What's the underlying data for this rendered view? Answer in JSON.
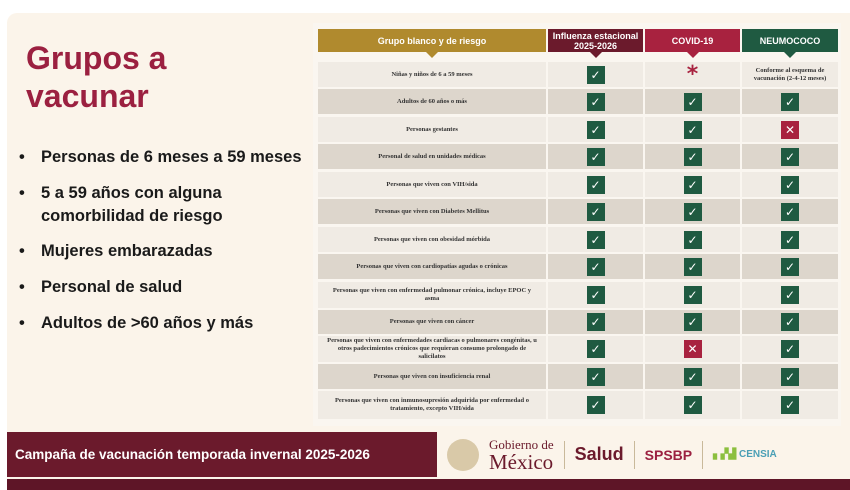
{
  "title": "Grupos a vacunar",
  "title_lines": [
    "Grupos a",
    "vacunar"
  ],
  "bullets": [
    "Personas de 6 meses a 59 meses",
    "5 a 59 años con alguna",
    "comorbilidad de riesgo",
    "Mujeres embarazadas",
    "Personal de salud",
    "Adultos de >60 años y más"
  ],
  "table": {
    "headers": [
      {
        "label": "Grupo blanco y de riesgo",
        "color": "#b08a2e"
      },
      {
        "label": "Influenza estacional 2025-2026",
        "color": "#6b1a2c"
      },
      {
        "label": "COVID-19",
        "color": "#a8223f"
      },
      {
        "label": "NEUMOCOCO",
        "color": "#1f5a41"
      }
    ],
    "rows": [
      {
        "group": "Niñas y niños de 6 a 59 meses",
        "influenza": "check",
        "covid": "asterisk",
        "neumococo": "Conforme al esquema de vacunación (2-4-12 meses)"
      },
      {
        "group": "Adultos de 60 años o más",
        "influenza": "check",
        "covid": "check",
        "neumococo": "check"
      },
      {
        "group": "Personas gestantes",
        "influenza": "check",
        "covid": "check",
        "neumococo": "x"
      },
      {
        "group": "Personal de salud en unidades médicas",
        "influenza": "check",
        "covid": "check",
        "neumococo": "check"
      },
      {
        "group": "Personas que viven con VIH/sida",
        "influenza": "check",
        "covid": "check",
        "neumococo": "check"
      },
      {
        "group": "Personas que viven con Diabetes Mellitus",
        "influenza": "check",
        "covid": "check",
        "neumococo": "check"
      },
      {
        "group": "Personas que viven con obesidad mórbida",
        "influenza": "check",
        "covid": "check",
        "neumococo": "check"
      },
      {
        "group": "Personas que viven con cardiopatías agudas o crónicas",
        "influenza": "check",
        "covid": "check",
        "neumococo": "check"
      },
      {
        "group": "Personas que viven con enfermedad pulmonar crónica, incluye EPOC y asma",
        "influenza": "check",
        "covid": "check",
        "neumococo": "check"
      },
      {
        "group": "Personas que viven con cáncer",
        "influenza": "check",
        "covid": "check",
        "neumococo": "check"
      },
      {
        "group": "Personas que viven con enfermedades cardiacas o pulmonares congénitas, u otros padecimientos crónicos que requieran consumo prolongado de salicilatos",
        "influenza": "check",
        "covid": "x",
        "neumococo": "check"
      },
      {
        "group": "Personas que viven con insuficiencia renal",
        "influenza": "check",
        "covid": "check",
        "neumococo": "check"
      },
      {
        "group": "Personas que viven con inmunosupresión adquirida por enfermedad o tratamiento, excepto VIH/sida",
        "influenza": "check",
        "covid": "check",
        "neumococo": "check"
      }
    ]
  },
  "footer": {
    "campaign": "Campaña de vacunación temporada invernal 2025-2026",
    "logos": {
      "gob_line1": "Gobierno de",
      "gob_line2": "México",
      "salud": "Salud",
      "spsbp": "SPSBP",
      "censia": "CENSIA"
    }
  }
}
